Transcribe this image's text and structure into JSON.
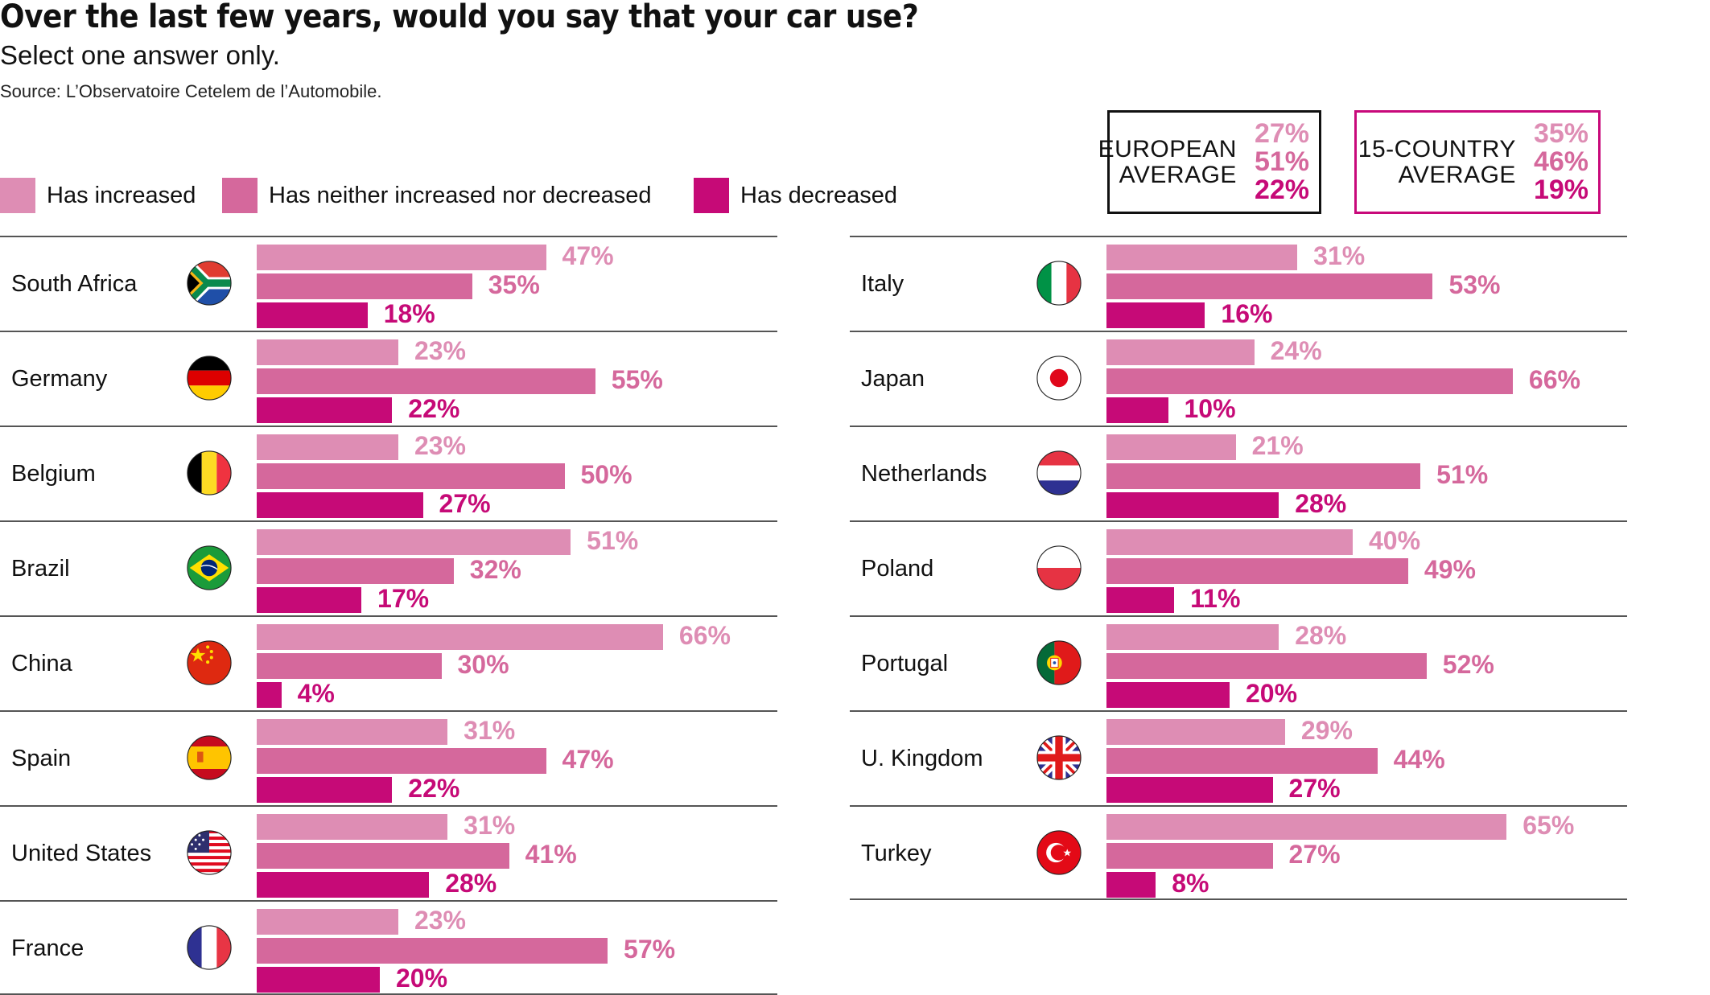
{
  "title": "Over the last few years, would you say that your car use?",
  "subtitle": "Select one answer only.",
  "source": "Source: L’Observatoire Cetelem de l’Automobile.",
  "colors": {
    "increased": "#de8db4",
    "neither": "#d5689c",
    "decreased": "#c60a77",
    "box_eu_border": "#111111",
    "box_15_border": "#c8097a"
  },
  "averages": {
    "european": {
      "label_line1": "EUROPEAN",
      "label_line2": "AVERAGE",
      "values": [
        "27%",
        "51%",
        "22%"
      ]
    },
    "fifteen": {
      "label_line1": "15-COUNTRY",
      "label_line2": "AVERAGE",
      "values": [
        "35%",
        "46%",
        "19%"
      ]
    }
  },
  "chart_data": {
    "type": "bar",
    "orientation": "horizontal",
    "title": "Over the last few years, would you say that your car use?",
    "subtitle": "Select one answer only.",
    "legend_position": "top-left",
    "series_names": [
      "Has increased",
      "Has neither increased nor decreased",
      "Has decreased"
    ],
    "unit": "%",
    "xlim": [
      0,
      100
    ],
    "grid": false,
    "averages": [
      {
        "name": "European average",
        "values": [
          27,
          51,
          22
        ]
      },
      {
        "name": "15-country average",
        "values": [
          35,
          46,
          19
        ]
      }
    ],
    "columns": [
      {
        "countries": [
          {
            "name": "South Africa",
            "flag": "south-africa",
            "values": [
              47,
              35,
              18
            ]
          },
          {
            "name": "Germany",
            "flag": "germany",
            "values": [
              23,
              55,
              22
            ]
          },
          {
            "name": "Belgium",
            "flag": "belgium",
            "values": [
              23,
              50,
              27
            ]
          },
          {
            "name": "Brazil",
            "flag": "brazil",
            "values": [
              51,
              32,
              17
            ]
          },
          {
            "name": "China",
            "flag": "china",
            "values": [
              66,
              30,
              4
            ]
          },
          {
            "name": "Spain",
            "flag": "spain",
            "values": [
              31,
              47,
              22
            ]
          },
          {
            "name": "United States",
            "flag": "united-states",
            "values": [
              31,
              41,
              28
            ]
          },
          {
            "name": "France",
            "flag": "france",
            "values": [
              23,
              57,
              20
            ]
          }
        ]
      },
      {
        "countries": [
          {
            "name": "Italy",
            "flag": "italy",
            "values": [
              31,
              53,
              16
            ]
          },
          {
            "name": "Japan",
            "flag": "japan",
            "values": [
              24,
              66,
              10
            ]
          },
          {
            "name": "Netherlands",
            "flag": "netherlands",
            "values": [
              21,
              51,
              28
            ]
          },
          {
            "name": "Poland",
            "flag": "poland",
            "values": [
              40,
              49,
              11
            ]
          },
          {
            "name": "Portugal",
            "flag": "portugal",
            "values": [
              28,
              52,
              20
            ]
          },
          {
            "name": "U. Kingdom",
            "flag": "united-kingdom",
            "values": [
              29,
              44,
              27
            ]
          },
          {
            "name": "Turkey",
            "flag": "turkey",
            "values": [
              65,
              27,
              8
            ]
          }
        ]
      }
    ]
  }
}
